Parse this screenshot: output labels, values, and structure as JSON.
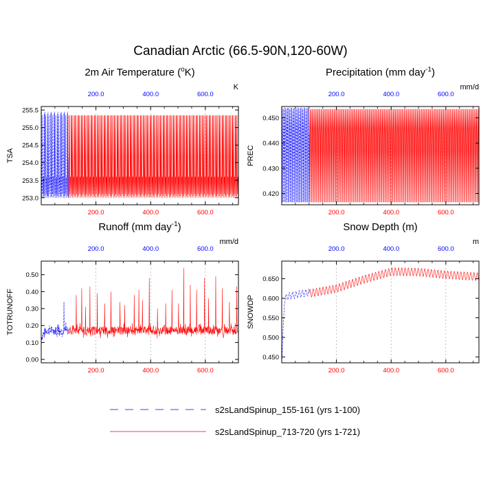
{
  "figure": {
    "title": "Canadian Arctic (66.5-90N,120-60W)"
  },
  "legend": {
    "placement": "bottom-center",
    "entries": [
      {
        "label": "s2sLandSpinup_155-161 (yrs 1-100)",
        "color": "#0000ff",
        "style": "dashed"
      },
      {
        "label": "s2sLandSpinup_713-720 (yrs 1-721)",
        "color": "#ff0000",
        "style": "solid"
      }
    ]
  },
  "chart_data": [
    {
      "type": "line",
      "title": "2m Air Temperature",
      "title_unit_pre": "(",
      "title_unit_sup": "o",
      "title_unit_post": "K)",
      "units": "K",
      "ylabel": "TSA",
      "xlim": [
        0,
        721
      ],
      "ylim": [
        252.8,
        255.6
      ],
      "yticks": [
        253.0,
        253.5,
        254.0,
        254.5,
        255.0,
        255.5
      ],
      "ytick_labels": [
        "253.0",
        "253.5",
        "254.0",
        "254.5",
        "255.0",
        "255.5"
      ],
      "xticks": [
        200,
        400,
        600
      ],
      "xtick_labels": [
        "200.0",
        "400.0",
        "600.0"
      ],
      "top_axis_color": "#0000ff",
      "bottom_axis_color": "#ff0000",
      "grid": "vertical dashed",
      "series": [
        {
          "name": "s2sLandSpinup_155-161 (yrs 1-100)",
          "color": "#0000ff",
          "style": "dashed",
          "pattern": "seasonal",
          "x_range": [
            1,
            100
          ],
          "period": 12,
          "cycle": [
            255.45,
            253.3,
            253.0,
            254.15,
            255.35,
            253.1,
            253.55,
            253.6,
            253.0,
            254.1,
            255.4,
            253.05
          ]
        },
        {
          "name": "s2sLandSpinup_713-720 (yrs 1-721)",
          "color": "#ff0000",
          "style": "solid",
          "pattern": "seasonal",
          "x_range": [
            100,
            721
          ],
          "period": 12,
          "cycle": [
            255.35,
            253.3,
            253.0,
            254.15,
            255.35,
            253.1,
            253.55,
            253.6,
            253.0,
            254.1,
            255.35,
            253.05
          ]
        }
      ]
    },
    {
      "type": "line",
      "title": "Precipitation",
      "title_unit_pre": "(mm day",
      "title_unit_sup": "-1",
      "title_unit_post": ")",
      "units": "mm/d",
      "ylabel": "PREC",
      "xlim": [
        0,
        721
      ],
      "ylim": [
        0.4155,
        0.4545
      ],
      "yticks": [
        0.42,
        0.43,
        0.44,
        0.45
      ],
      "ytick_labels": [
        "0.420",
        "0.430",
        "0.440",
        "0.450"
      ],
      "xticks": [
        200,
        400,
        600
      ],
      "xtick_labels": [
        "200.0",
        "400.0",
        "600.0"
      ],
      "top_axis_color": "#0000ff",
      "bottom_axis_color": "#ff0000",
      "grid": "vertical dashed",
      "series": [
        {
          "name": "s2sLandSpinup_155-161 (yrs 1-100)",
          "color": "#0000ff",
          "style": "dashed",
          "pattern": "seasonal",
          "x_range": [
            1,
            100
          ],
          "period": 12,
          "cycle": [
            0.454,
            0.443,
            0.4165,
            0.4435,
            0.4535,
            0.4435,
            0.4165,
            0.4435,
            0.454,
            0.443,
            0.4165,
            0.4435
          ]
        },
        {
          "name": "s2sLandSpinup_713-720 (yrs 1-721)",
          "color": "#ff0000",
          "style": "solid",
          "pattern": "seasonal",
          "x_range": [
            100,
            721
          ],
          "period": 12,
          "cycle": [
            0.4535,
            0.443,
            0.4165,
            0.4435,
            0.4535,
            0.4435,
            0.4165,
            0.4435,
            0.4535,
            0.443,
            0.4165,
            0.4435
          ]
        }
      ]
    },
    {
      "type": "line",
      "title": "Runoff",
      "title_unit_pre": "(mm day",
      "title_unit_sup": "-1",
      "title_unit_post": ")",
      "units": "mm/d",
      "ylabel": "TOTRUNOFF",
      "xlim": [
        0,
        721
      ],
      "ylim": [
        -0.02,
        0.58
      ],
      "yticks": [
        0.0,
        0.1,
        0.2,
        0.3,
        0.4,
        0.5
      ],
      "ytick_labels": [
        "0.00",
        "0.10",
        "0.20",
        "0.30",
        "0.40",
        "0.50"
      ],
      "xticks": [
        200,
        400,
        600
      ],
      "xtick_labels": [
        "200.0",
        "400.0",
        "600.0"
      ],
      "top_axis_color": "#0000ff",
      "bottom_axis_color": "#ff0000",
      "grid": "vertical dashed",
      "series": [
        {
          "name": "s2sLandSpinup_155-161 (yrs 1-100)",
          "color": "#0000ff",
          "style": "dashed",
          "pattern": "noisy",
          "x_range": [
            1,
            100
          ],
          "ramp": {
            "start": 0.13,
            "end": 0.17,
            "length": 15
          },
          "base": 0.17,
          "amp": 0.025,
          "seed": 7,
          "spikes": [
            [
              30,
              0.2
            ],
            [
              55,
              0.19
            ],
            [
              62,
              0.21
            ],
            [
              83,
              0.34
            ],
            [
              90,
              0.22
            ]
          ]
        },
        {
          "name": "s2sLandSpinup_713-720 (yrs 1-721)",
          "color": "#ff0000",
          "style": "solid",
          "pattern": "noisy",
          "x_range": [
            100,
            721
          ],
          "base": 0.17,
          "amp": 0.025,
          "seed": 11,
          "spikes": [
            [
              128,
              0.38
            ],
            [
              148,
              0.42
            ],
            [
              162,
              0.31
            ],
            [
              178,
              0.43
            ],
            [
              205,
              0.39
            ],
            [
              232,
              0.33
            ],
            [
              255,
              0.4
            ],
            [
              288,
              0.34
            ],
            [
              305,
              0.32
            ],
            [
              340,
              0.38
            ],
            [
              357,
              0.41
            ],
            [
              370,
              0.35
            ],
            [
              395,
              0.48
            ],
            [
              425,
              0.3
            ],
            [
              455,
              0.33
            ],
            [
              478,
              0.41
            ],
            [
              502,
              0.33
            ],
            [
              521,
              0.54
            ],
            [
              545,
              0.44
            ],
            [
              568,
              0.41
            ],
            [
              597,
              0.48
            ],
            [
              612,
              0.36
            ],
            [
              638,
              0.49
            ],
            [
              662,
              0.42
            ],
            [
              688,
              0.34
            ],
            [
              715,
              0.43
            ]
          ]
        }
      ]
    },
    {
      "type": "line",
      "title": "Snow Depth (m)",
      "units": "m",
      "ylabel": "SNOWDP",
      "xlim": [
        0,
        721
      ],
      "ylim": [
        0.435,
        0.695
      ],
      "yticks": [
        0.45,
        0.5,
        0.55,
        0.6,
        0.65
      ],
      "ytick_labels": [
        "0.450",
        "0.500",
        "0.550",
        "0.600",
        "0.650"
      ],
      "xticks": [
        200,
        400,
        600
      ],
      "xtick_labels": [
        "200.0",
        "400.0",
        "600.0"
      ],
      "top_axis_color": "#0000ff",
      "bottom_axis_color": "#ff0000",
      "grid": "vertical dashed",
      "series": [
        {
          "name": "s2sLandSpinup_155-161 (yrs 1-100)",
          "color": "#0000ff",
          "style": "dashed",
          "pattern": "trend",
          "x_range": [
            1,
            100
          ],
          "period": 12,
          "amp": 0.009,
          "trend": [
            [
              1,
              0.445
            ],
            [
              5,
              0.52
            ],
            [
              10,
              0.595
            ],
            [
              20,
              0.605
            ],
            [
              60,
              0.61
            ],
            [
              100,
              0.615
            ]
          ]
        },
        {
          "name": "s2sLandSpinup_713-720 (yrs 1-721)",
          "color": "#ff0000",
          "style": "solid",
          "pattern": "trend",
          "x_range": [
            100,
            721
          ],
          "period": 12,
          "amp": 0.01,
          "trend": [
            [
              100,
              0.612
            ],
            [
              200,
              0.625
            ],
            [
              300,
              0.648
            ],
            [
              400,
              0.668
            ],
            [
              500,
              0.667
            ],
            [
              600,
              0.66
            ],
            [
              721,
              0.655
            ]
          ]
        }
      ]
    }
  ]
}
